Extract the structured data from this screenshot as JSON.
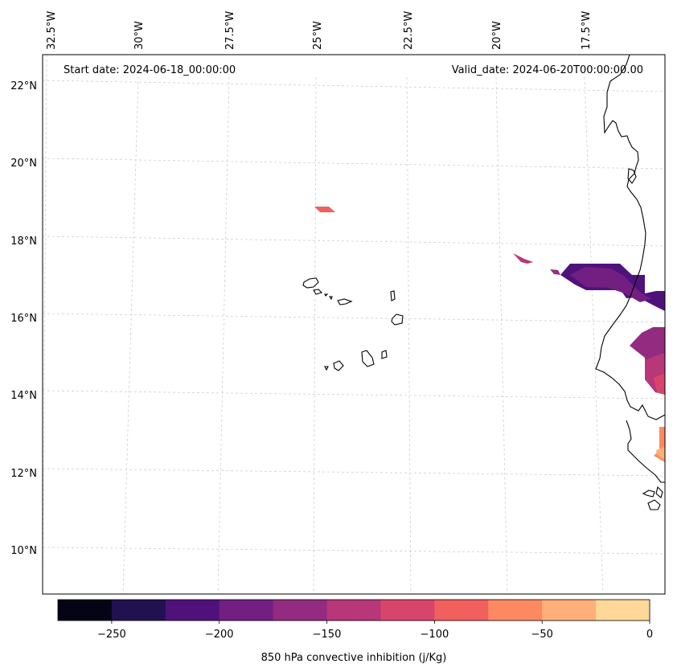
{
  "map": {
    "start_date_text": "Start date: 2024-06-18_00:00:00",
    "valid_date_text": "Valid_date: 2024-06-20T00:00:00.00",
    "lon_ticks": [
      "32.5°W",
      "30°W",
      "27.5°W",
      "25°W",
      "22.5°W",
      "20°W",
      "17.5°W"
    ],
    "lat_ticks": [
      "22°N",
      "20°N",
      "18°N",
      "16°N",
      "14°N",
      "12°N",
      "10°N"
    ]
  },
  "colorbar": {
    "label": "850 hPa convective inhibition (j/Kg)",
    "tick_labels": [
      "−250",
      "−200",
      "−150",
      "−100",
      "−50",
      "0"
    ],
    "levels": [
      -275,
      -250,
      -225,
      -200,
      -175,
      -150,
      -125,
      -100,
      -75,
      -50,
      -25,
      0
    ],
    "colors": [
      "#050416",
      "#221150",
      "#4f127b",
      "#721f81",
      "#932b80",
      "#b73779",
      "#d8456c",
      "#f1605d",
      "#fc8961",
      "#feb078",
      "#fed799",
      "#fcfdbf"
    ]
  },
  "colors": {
    "background": "#ffffff",
    "coastline": "#000000",
    "gridline": "#c8c8c8"
  }
}
